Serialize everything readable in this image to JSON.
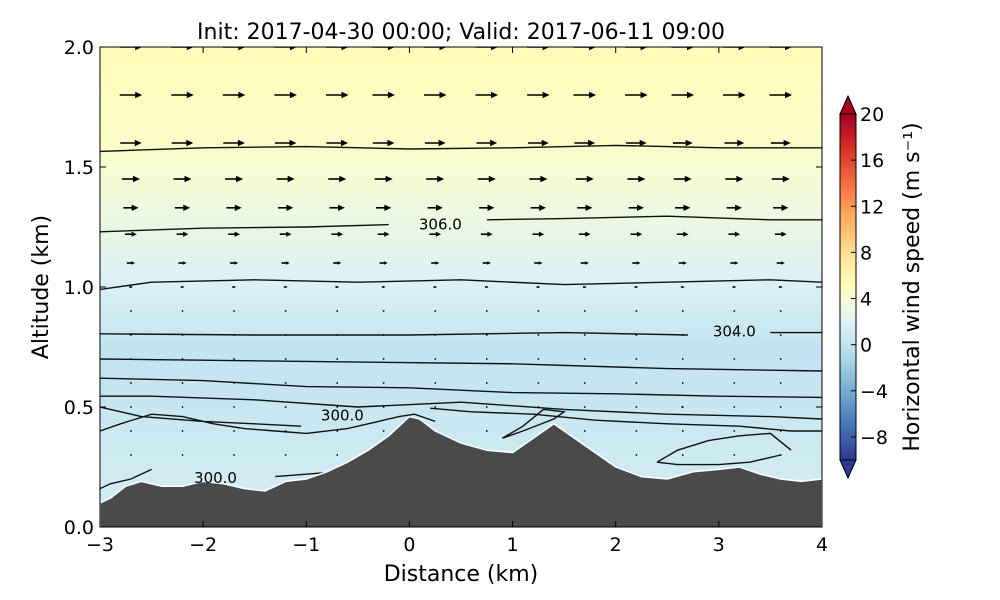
{
  "chart_data": {
    "type": "heatmap",
    "title": "Init: 2017-04-30 00:00; Valid: 2017-06-11 09:00",
    "xlabel": "Distance (km)",
    "ylabel": "Altitude (km)",
    "xlim": [
      -3,
      4
    ],
    "ylim": [
      0.0,
      2.0
    ],
    "x_ticks": [
      -3,
      -2,
      -1,
      0,
      1,
      2,
      3,
      4
    ],
    "x_tick_labels": [
      "−3",
      "−2",
      "−1",
      "0",
      "1",
      "2",
      "3",
      "4"
    ],
    "y_ticks": [
      0.0,
      0.5,
      1.0,
      1.5,
      2.0
    ],
    "y_tick_labels": [
      "0.0",
      "0.5",
      "1.0",
      "1.5",
      "2.0"
    ],
    "colorbar": {
      "label": "Horizontal wind speed (m s⁻¹)",
      "range": [
        -10,
        20
      ],
      "ticks": [
        -8,
        -4,
        0,
        4,
        8,
        12,
        16,
        20
      ],
      "tick_labels": [
        "−8",
        "−4",
        "0",
        "4",
        "8",
        "12",
        "16",
        "20"
      ],
      "colormap": "RdYlBu_r",
      "extend": "both"
    },
    "field_profile": [
      {
        "altitude": 0.0,
        "speed": 1.2
      },
      {
        "altitude": 0.3,
        "speed": 1.0
      },
      {
        "altitude": 0.55,
        "speed": 0.4
      },
      {
        "altitude": 0.75,
        "speed": 0.3
      },
      {
        "altitude": 1.0,
        "speed": 1.6
      },
      {
        "altitude": 1.3,
        "speed": 3.2
      },
      {
        "altitude": 1.6,
        "speed": 4.6
      },
      {
        "altitude": 2.0,
        "speed": 5.4
      }
    ],
    "terrain": {
      "x": [
        -3.0,
        -2.9,
        -2.75,
        -2.6,
        -2.4,
        -2.2,
        -2.0,
        -1.8,
        -1.6,
        -1.4,
        -1.2,
        -1.0,
        -0.8,
        -0.6,
        -0.4,
        -0.2,
        0.0,
        0.1,
        0.25,
        0.5,
        0.75,
        1.0,
        1.2,
        1.4,
        1.6,
        1.8,
        2.0,
        2.25,
        2.5,
        2.75,
        3.0,
        3.2,
        3.4,
        3.6,
        3.8,
        4.0
      ],
      "altitude": [
        0.1,
        0.12,
        0.17,
        0.19,
        0.17,
        0.17,
        0.19,
        0.18,
        0.16,
        0.15,
        0.19,
        0.2,
        0.23,
        0.27,
        0.32,
        0.38,
        0.46,
        0.45,
        0.4,
        0.35,
        0.32,
        0.31,
        0.37,
        0.43,
        0.37,
        0.31,
        0.25,
        0.21,
        0.2,
        0.23,
        0.24,
        0.25,
        0.22,
        0.2,
        0.19,
        0.2
      ]
    },
    "contour_lines": [
      {
        "x": [
          -3.0,
          -2.0,
          -1.0,
          0.0,
          1.0,
          2.0,
          3.0,
          4.0
        ],
        "altitude": [
          1.565,
          1.58,
          1.585,
          1.575,
          1.58,
          1.59,
          1.58,
          1.58
        ]
      },
      {
        "x": [
          -3.0,
          -2.0,
          -1.0,
          -0.2
        ],
        "altitude": [
          1.23,
          1.245,
          1.25,
          1.26
        ]
      },
      {
        "x": [
          0.75,
          1.5,
          2.5,
          3.5,
          4.0
        ],
        "altitude": [
          1.28,
          1.285,
          1.295,
          1.28,
          1.28
        ]
      },
      {
        "x": [
          -3.0,
          -2.5,
          -1.5,
          -0.5,
          0.5,
          1.5,
          2.5,
          3.5,
          4.0
        ],
        "altitude": [
          0.99,
          1.02,
          1.03,
          1.02,
          1.03,
          1.01,
          1.02,
          1.03,
          1.02
        ]
      },
      {
        "x": [
          -3.0,
          -1.5,
          0.0,
          1.5,
          2.7
        ],
        "altitude": [
          0.805,
          0.8,
          0.8,
          0.81,
          0.8
        ]
      },
      {
        "x": [
          3.5,
          4.0
        ],
        "altitude": [
          0.81,
          0.81
        ]
      },
      {
        "x": [
          -3.0,
          -1.0,
          1.0,
          2.5,
          4.0
        ],
        "altitude": [
          0.7,
          0.69,
          0.68,
          0.66,
          0.65
        ]
      },
      {
        "x": [
          -3.0,
          -2.0,
          -1.0,
          0.0,
          1.0,
          2.0,
          3.0,
          4.0
        ],
        "altitude": [
          0.62,
          0.61,
          0.585,
          0.58,
          0.56,
          0.555,
          0.545,
          0.54
        ]
      },
      {
        "x": [
          -3.0,
          -2.5,
          -1.5,
          -0.5,
          0.5,
          1.5,
          2.5,
          3.5,
          4.0
        ],
        "altitude": [
          0.545,
          0.545,
          0.53,
          0.5,
          0.52,
          0.49,
          0.47,
          0.46,
          0.45
        ]
      },
      {
        "x": [
          -3.0,
          -2.6,
          -2.0,
          -1.5,
          -1.05
        ],
        "altitude": [
          0.5,
          0.46,
          0.44,
          0.43,
          0.42
        ]
      },
      {
        "x": [
          0.2,
          0.6,
          1.2,
          1.8,
          2.5,
          3.2,
          3.7,
          4.0
        ],
        "altitude": [
          0.495,
          0.48,
          0.47,
          0.445,
          0.43,
          0.42,
          0.4,
          0.4
        ]
      },
      {
        "x": [
          -3.0,
          -2.8,
          -2.5,
          -2.2,
          -1.9,
          -1.6,
          -1.3,
          -1.0,
          -0.6,
          -0.3,
          -0.1,
          0.05,
          0.25
        ],
        "altitude": [
          0.4,
          0.43,
          0.47,
          0.46,
          0.43,
          0.41,
          0.4,
          0.39,
          0.41,
          0.44,
          0.46,
          0.47,
          0.44
        ]
      },
      {
        "x": [
          0.9,
          1.1,
          1.3,
          1.5,
          1.4,
          1.1,
          0.9
        ],
        "altitude": [
          0.37,
          0.42,
          0.49,
          0.48,
          0.45,
          0.4,
          0.37
        ]
      },
      {
        "x": [
          2.4,
          2.6,
          2.9,
          3.2,
          3.5,
          3.7
        ],
        "altitude": [
          0.27,
          0.32,
          0.36,
          0.38,
          0.39,
          0.32
        ]
      },
      {
        "x": [
          2.4,
          2.6,
          3.0,
          3.3,
          3.6
        ],
        "altitude": [
          0.27,
          0.26,
          0.26,
          0.27,
          0.3
        ]
      },
      {
        "x": [
          -3.0,
          -2.9,
          -2.7,
          -2.5
        ],
        "altitude": [
          0.16,
          0.18,
          0.2,
          0.24
        ]
      },
      {
        "x": [
          -1.3,
          -1.0,
          -0.7
        ],
        "altitude": [
          0.21,
          0.22,
          0.23
        ]
      }
    ],
    "contour_labels": [
      {
        "text": "306.0",
        "x": 0.3,
        "altitude": 1.26
      },
      {
        "text": "304.0",
        "x": 3.15,
        "altitude": 0.815
      },
      {
        "text": "300.0",
        "x": -0.65,
        "altitude": 0.465
      },
      {
        "text": "300.0",
        "x": -1.88,
        "altitude": 0.205
      }
    ],
    "vector_grid": {
      "x": [
        -2.7,
        -2.2,
        -1.7,
        -1.2,
        -0.7,
        -0.25,
        0.25,
        0.75,
        1.25,
        1.7,
        2.2,
        2.65,
        3.15,
        3.6
      ],
      "altitude": [
        2.0,
        1.8,
        1.6,
        1.45,
        1.33,
        1.22,
        1.1,
        1.0,
        0.9,
        0.8,
        0.7,
        0.6,
        0.5,
        0.4,
        0.3
      ],
      "u": [
        [
          2.5,
          2.5,
          2.5,
          2.5,
          2.5,
          2.5,
          2.5,
          2.5,
          2.5,
          2.5,
          2.5,
          2.5,
          2.5,
          2.5
        ],
        [
          2.5,
          2.5,
          2.5,
          2.5,
          2.5,
          2.5,
          2.5,
          2.5,
          2.5,
          2.5,
          2.5,
          2.5,
          2.5,
          2.5
        ],
        [
          2.4,
          2.4,
          2.4,
          2.4,
          2.4,
          2.4,
          2.3,
          2.3,
          2.3,
          2.3,
          2.3,
          2.2,
          2.2,
          2.2
        ],
        [
          2.0,
          2.0,
          2.0,
          2.0,
          2.0,
          2.0,
          2.0,
          2.0,
          2.0,
          2.0,
          2.0,
          2.0,
          2.0,
          2.0
        ],
        [
          1.7,
          1.7,
          1.7,
          1.7,
          1.7,
          1.7,
          1.7,
          1.7,
          1.7,
          1.7,
          1.7,
          1.7,
          1.7,
          1.7
        ],
        [
          1.3,
          1.3,
          1.3,
          1.3,
          1.3,
          1.3,
          1.3,
          1.3,
          1.3,
          1.3,
          1.3,
          1.3,
          1.3,
          1.3
        ],
        [
          0.9,
          0.9,
          0.9,
          0.9,
          0.9,
          0.9,
          0.9,
          0.9,
          0.9,
          0.9,
          0.9,
          0.9,
          0.9,
          0.9
        ],
        [
          0.4,
          0.4,
          0.4,
          0.4,
          0.4,
          0.4,
          0.4,
          0.4,
          0.4,
          0.4,
          0.4,
          0.4,
          0.4,
          0.4
        ],
        [
          0.2,
          0.2,
          0.2,
          0.2,
          0.2,
          0.2,
          0.2,
          0.2,
          0.2,
          0.2,
          0.2,
          0.2,
          0.2,
          0.2
        ],
        [
          0.1,
          0.1,
          0.1,
          0.1,
          0.1,
          0.1,
          0.1,
          0.1,
          0.1,
          0.1,
          0.1,
          0.1,
          0.1,
          0.1
        ],
        [
          0.1,
          0.1,
          0.1,
          0.1,
          0.1,
          0.1,
          0.1,
          0.1,
          0.1,
          0.1,
          0.1,
          0.1,
          0.1,
          0.1
        ],
        [
          0.1,
          0.1,
          0.1,
          0.1,
          0.1,
          0.1,
          0.1,
          0.1,
          0.1,
          0.1,
          0.1,
          0.1,
          0.1,
          0.1
        ],
        [
          0.1,
          0.1,
          0.1,
          0.1,
          0.1,
          0.1,
          0.1,
          0.1,
          0.1,
          0.1,
          0.2,
          0.3,
          0.2,
          0.2
        ],
        [
          0.1,
          0.1,
          0.1,
          0.1,
          0.1,
          0.1,
          0.1,
          0.1,
          0.1,
          0.1,
          0.1,
          0.2,
          0.1,
          0.1
        ],
        [
          0.1,
          0.1,
          0.1,
          0.1,
          0.1,
          0.1,
          0.1,
          0.1,
          0.1,
          0.1,
          0.1,
          0.1,
          0.1,
          0.1
        ]
      ]
    }
  }
}
